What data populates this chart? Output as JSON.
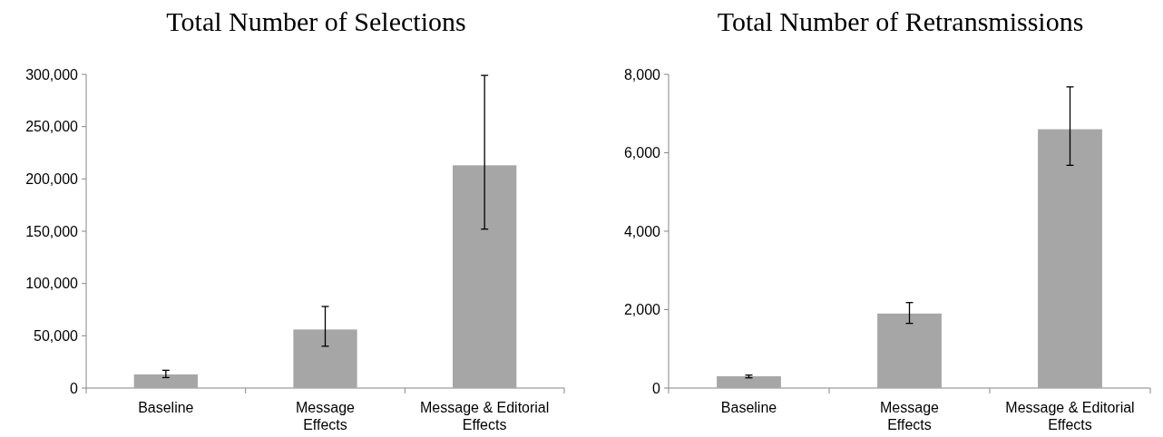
{
  "chart_data": [
    {
      "type": "bar",
      "title": "Total Number of Selections",
      "categories": [
        "Baseline",
        "Message Effects",
        "Message & Editorial Effects"
      ],
      "values": [
        13000,
        56000,
        213000
      ],
      "color": "#a6a6a6",
      "errors": [
        [
          10000,
          17000
        ],
        [
          40000,
          78000
        ],
        [
          152000,
          299000
        ]
      ],
      "ylim": [
        0,
        300000
      ],
      "yticks": [
        {
          "value": 0,
          "label": "0"
        },
        {
          "value": 50000,
          "label": "50,000"
        },
        {
          "value": 100000,
          "label": "100,000"
        },
        {
          "value": 150000,
          "label": "150,000"
        },
        {
          "value": 200000,
          "label": "200,000"
        },
        {
          "value": 250000,
          "label": "250,000"
        },
        {
          "value": 300000,
          "label": "300,000"
        }
      ],
      "grid": false
    },
    {
      "type": "bar",
      "title": "Total Number of Retransmissions",
      "categories": [
        "Baseline",
        "Message Effects",
        "Message & Editorial Effects"
      ],
      "values": [
        300,
        1900,
        6600
      ],
      "color": "#a6a6a6",
      "errors": [
        [
          260,
          330
        ],
        [
          1650,
          2180
        ],
        [
          5680,
          7680
        ]
      ],
      "ylim": [
        0,
        8000
      ],
      "yticks": [
        {
          "value": 0,
          "label": "0"
        },
        {
          "value": 2000,
          "label": "2,000"
        },
        {
          "value": 4000,
          "label": "4,000"
        },
        {
          "value": 6000,
          "label": "6,000"
        },
        {
          "value": 8000,
          "label": "8,000"
        }
      ],
      "grid": false
    }
  ]
}
